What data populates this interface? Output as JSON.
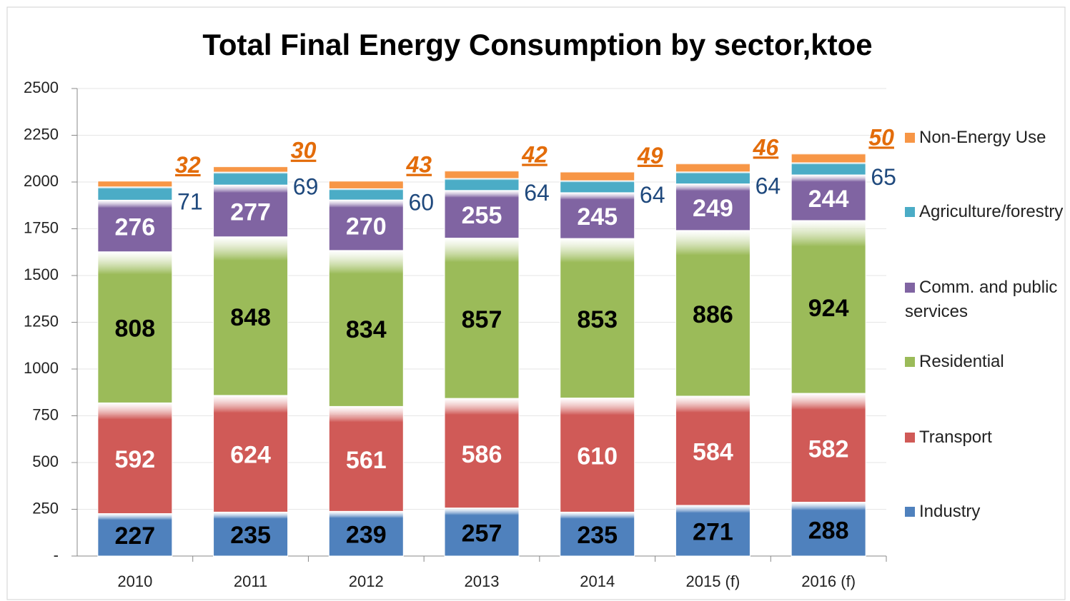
{
  "chart_data": {
    "type": "stacked_bar",
    "title": "Total Final Energy Consumption by sector,ktoe",
    "categories": [
      "2010",
      "2011",
      "2012",
      "2013",
      "2014",
      "2015 (f)",
      "2016 (f)"
    ],
    "series": [
      {
        "name": "Industry",
        "color": "#4f81bd",
        "label_color": "#000000",
        "values": [
          227,
          235,
          239,
          257,
          235,
          271,
          288
        ]
      },
      {
        "name": "Transport",
        "color": "#d05a57",
        "label_color": "#ffffff",
        "values": [
          592,
          624,
          561,
          586,
          610,
          584,
          582
        ]
      },
      {
        "name": "Residential",
        "color": "#9bbb59",
        "label_color": "#000000",
        "values": [
          808,
          848,
          834,
          857,
          853,
          886,
          924
        ]
      },
      {
        "name": "Comm. and public services",
        "color": "#8064a2",
        "label_color": "#ffffff",
        "values": [
          276,
          277,
          270,
          255,
          245,
          249,
          244
        ]
      },
      {
        "name": "Agriculture/forestry",
        "color": "#4bacc6",
        "label_color": "#1f497d",
        "values": [
          71,
          69,
          60,
          64,
          64,
          64,
          65
        ]
      },
      {
        "name": "Non-Energy Use",
        "color": "#f79646",
        "label_color": "#e36c0a",
        "values": [
          32,
          30,
          43,
          42,
          49,
          46,
          50
        ]
      }
    ],
    "ylim": [
      0,
      2500
    ],
    "yticks": [
      {
        "value": 0,
        "label": "-"
      },
      250,
      500,
      750,
      1000,
      1250,
      1500,
      1750,
      2000,
      2250,
      2500
    ],
    "grid": true,
    "legend": "right"
  }
}
